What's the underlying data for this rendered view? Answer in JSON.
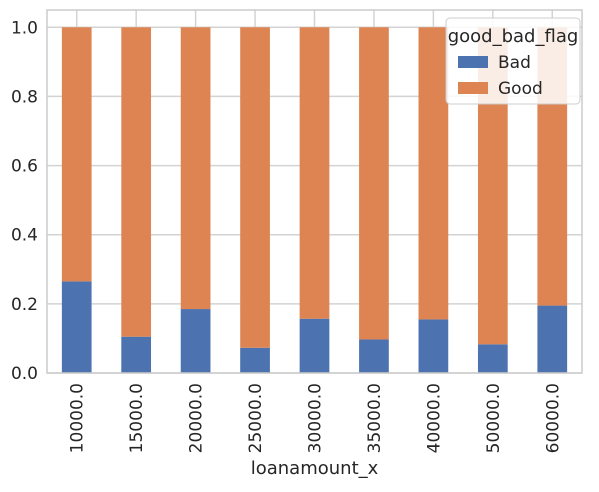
{
  "chart_data": {
    "type": "bar",
    "stacked": true,
    "title": "",
    "xlabel": "loanamount_x",
    "ylabel": "",
    "categories": [
      "10000.0",
      "15000.0",
      "20000.0",
      "25000.0",
      "30000.0",
      "35000.0",
      "40000.0",
      "50000.0",
      "60000.0"
    ],
    "series": [
      {
        "name": "Bad",
        "color": "#4c72b0",
        "values": [
          0.265,
          0.105,
          0.185,
          0.073,
          0.157,
          0.097,
          0.155,
          0.083,
          0.195
        ]
      },
      {
        "name": "Good",
        "color": "#dd8452",
        "values": [
          0.735,
          0.895,
          0.815,
          0.927,
          0.843,
          0.903,
          0.845,
          0.917,
          0.805
        ]
      }
    ],
    "ylim": [
      0,
      1.05
    ],
    "yticks": [
      "0.0",
      "0.2",
      "0.4",
      "0.6",
      "0.8",
      "1.0"
    ],
    "ytick_values": [
      0,
      0.2,
      0.4,
      0.6,
      0.8,
      1.0
    ],
    "grid": true,
    "legend": {
      "title": "good_bad_flag",
      "position": "top-right"
    },
    "colors": {
      "background": "#ffffff",
      "grid": "#d3d3d3",
      "axes_edge": "#cccccc",
      "legend_face": "#ffffff",
      "legend_edge": "#cccccc"
    }
  }
}
